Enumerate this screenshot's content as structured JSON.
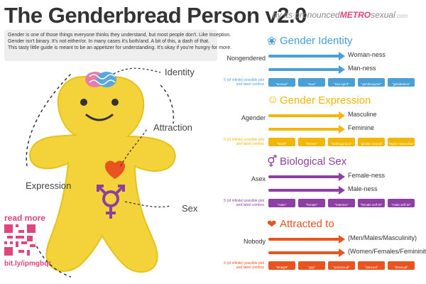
{
  "title": "The Genderbread Person v2.0",
  "byline": {
    "prefix": "by its pronounced",
    "metro": "METRO",
    "suffix": "sexual",
    "com": ".com"
  },
  "intro": [
    "Gender is one of those things everyone thinks they understand, but most people don't. Like Inception.",
    "Gender isn't binary.  It's not either/or.  In many cases it's both/and.  A bit of this, a dash of that.",
    "This tasty little guide is meant to be an appetizer for understanding. It's okay if you're hungry for more."
  ],
  "figure_labels": {
    "identity": "Identity",
    "attraction": "Attraction",
    "expression": "Expression",
    "sex": "Sex"
  },
  "read_more": "read more",
  "short_url": "bit.ly/ipmgbqr",
  "colors": {
    "identity": "#4a9fd5",
    "expression": "#f2b705",
    "sex": "#8e3fa3",
    "attraction": "#e8531f",
    "body": "#f3d23a"
  },
  "sections": [
    {
      "key": "identity",
      "title": "Gender Identity",
      "icon": "brain-icon",
      "left": "Nongendered",
      "rows": [
        "Woman-ness",
        "Man-ness"
      ],
      "combo_note": "5 (of infinite) possible plot and label combos",
      "chips": [
        "\"woman\"",
        "\"man\"",
        "\"two-spirit\"",
        "\"genderqueer\"",
        "\"genderless\""
      ]
    },
    {
      "key": "expression",
      "title": "Gender Expression",
      "icon": "person-icon",
      "left": "Agender",
      "rows": [
        "Masculine",
        "Feminine"
      ],
      "combo_note": "5 (of infinite) possible plot and label combos",
      "chips": [
        "\"butch\"",
        "\"femme\"",
        "\"androgynous\"",
        "\"gender neutral\"",
        "\"hyper-masculine\""
      ]
    },
    {
      "key": "sex",
      "title": "Biological Sex",
      "icon": "sex-symbol-icon",
      "left": "Asex",
      "rows": [
        "Female-ness",
        "Male-ness"
      ],
      "combo_note": "5 (of infinite) possible plot and label combos",
      "chips": [
        "\"male\"",
        "\"female\"",
        "\"intersex\"",
        "\"female self ID\"",
        "\"male self ID\""
      ]
    },
    {
      "key": "attraction",
      "title": "Attracted to",
      "icon": "heart-icon",
      "left": "Nobody",
      "rows": [
        "(Men/Males/Masculinity)",
        "(Women/Females/Femininity)"
      ],
      "combo_note": "5 (of infinite) possible plot and label combos",
      "chips": [
        "\"straight\"",
        "\"gay\"",
        "\"pansexual\"",
        "\"asexual\"",
        "\"bisexual\""
      ]
    }
  ]
}
